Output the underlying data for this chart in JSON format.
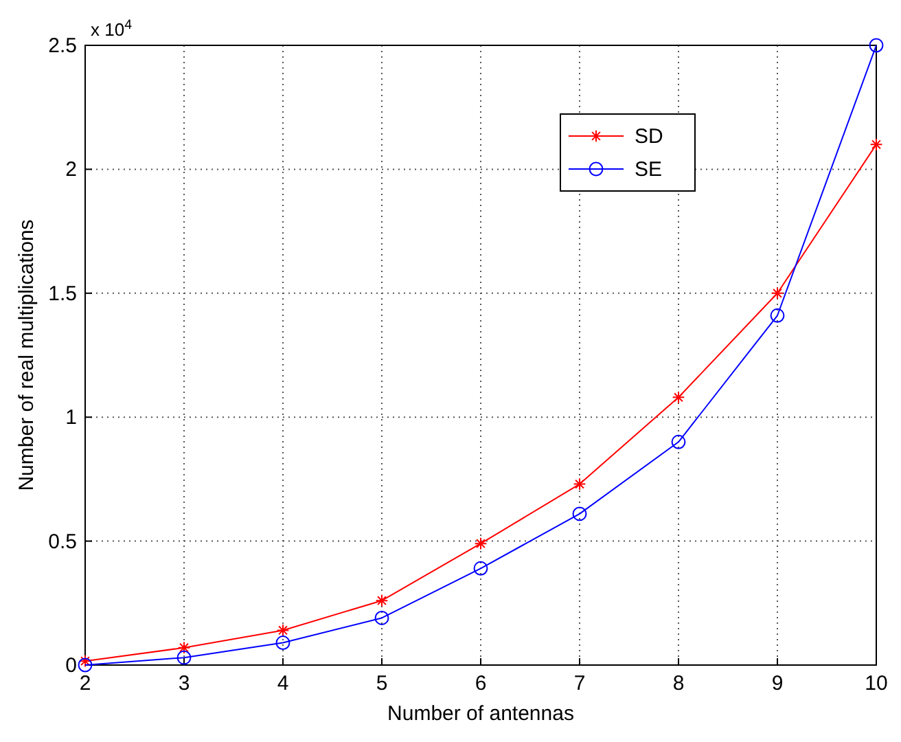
{
  "chart_data": {
    "type": "line",
    "xlabel": "Number of antennas",
    "ylabel": "Number of real multiplications",
    "annotations": [
      "x 10$^{4}$"
    ],
    "x": [
      2,
      3,
      4,
      5,
      6,
      7,
      8,
      9,
      10
    ],
    "xlim": [
      2,
      10
    ],
    "xticks": [
      2,
      3,
      4,
      5,
      6,
      7,
      8,
      9,
      10
    ],
    "ylim": [
      0,
      2.5
    ],
    "yticks": [
      0,
      0.5,
      1,
      1.5,
      2,
      2.5
    ],
    "grid": true,
    "legend": "top right",
    "line_style": "solid",
    "series": [
      {
        "name": "SD",
        "color": "#ff0000",
        "marker": "cross",
        "values": [
          0.016,
          0.07,
          0.14,
          0.26,
          0.49,
          0.73,
          1.08,
          1.5,
          2.1
        ]
      },
      {
        "name": "SE",
        "color": "#0000ff",
        "marker": "circle",
        "values": [
          0.0,
          0.03,
          0.09,
          0.19,
          0.39,
          0.61,
          0.9,
          1.41,
          2.5
        ]
      }
    ]
  }
}
